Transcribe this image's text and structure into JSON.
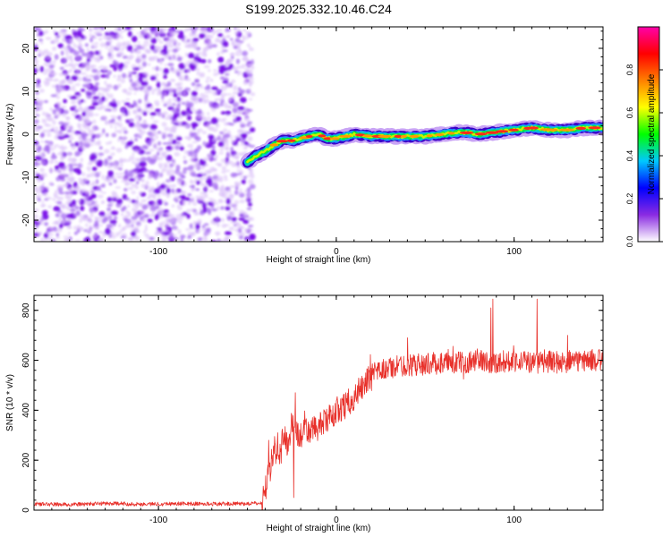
{
  "title": "S199.2025.332.10.46.C24",
  "chart_data": [
    {
      "type": "heatmap",
      "panel": "spectrogram",
      "xlabel": "Height of straight line (km)",
      "ylabel": "Frequency (Hz)",
      "xlim": [
        -170,
        150
      ],
      "ylim": [
        -25,
        25
      ],
      "xticks": [
        -100,
        0,
        100
      ],
      "yticks": [
        -20,
        -10,
        0,
        10,
        20
      ],
      "noise_region_x": [
        -170,
        -50
      ],
      "noise_color": "#9b3cf0",
      "signal_track": {
        "x": [
          -50,
          -45,
          -40,
          -35,
          -30,
          -25,
          -20,
          -15,
          -10,
          -5,
          0,
          10,
          20,
          30,
          40,
          50,
          60,
          70,
          80,
          90,
          100,
          110,
          120,
          130,
          140,
          150
        ],
        "freq_hz": [
          -6.5,
          -5.0,
          -4.0,
          -2.5,
          -1.5,
          -1.5,
          -1.0,
          -0.5,
          0.0,
          -1.0,
          -1.0,
          0.0,
          -0.5,
          -0.5,
          -0.5,
          -0.5,
          0.0,
          0.5,
          0.0,
          0.5,
          1.0,
          1.5,
          1.0,
          1.0,
          1.5,
          1.5
        ]
      },
      "colorbar": {
        "label": "Normalized spectral amplitude",
        "range": [
          0,
          1
        ],
        "ticks": [
          "0.0",
          "0.2",
          "0.4",
          "0.6",
          "0.8"
        ],
        "colors": [
          "#ffffff",
          "#8a2be2",
          "#0000ff",
          "#00c8ff",
          "#00ff00",
          "#ffff00",
          "#ff8000",
          "#ff0000",
          "#ff00aa"
        ]
      }
    },
    {
      "type": "line",
      "panel": "snr",
      "xlabel": "Height of straight line (km)",
      "ylabel": "SNR (10 * v/v)",
      "xlim": [
        -170,
        150
      ],
      "ylim": [
        0,
        860
      ],
      "xticks": [
        -100,
        0,
        100
      ],
      "yticks": [
        0,
        200,
        400,
        600,
        800
      ],
      "color": "#e8302a",
      "series": [
        {
          "name": "SNR",
          "x": [
            -170,
            -150,
            -130,
            -110,
            -90,
            -70,
            -50,
            -42,
            -40,
            -37,
            -35,
            -32,
            -30,
            -27,
            -25,
            -22,
            -20,
            -17,
            -15,
            -12,
            -10,
            -7,
            -5,
            -2,
            0,
            5,
            10,
            15,
            20,
            25,
            30,
            40,
            50,
            60,
            70,
            80,
            90,
            100,
            110,
            120,
            130,
            140,
            150
          ],
          "values": [
            25,
            22,
            27,
            24,
            26,
            25,
            26,
            28,
            80,
            170,
            250,
            200,
            300,
            260,
            350,
            300,
            300,
            320,
            310,
            330,
            330,
            350,
            360,
            380,
            400,
            420,
            450,
            500,
            540,
            560,
            570,
            580,
            585,
            590,
            590,
            600,
            590,
            600,
            590,
            595,
            590,
            600,
            600
          ]
        }
      ],
      "spikes": [
        {
          "x": -38,
          "y": 280
        },
        {
          "x": -33,
          "y": 310
        },
        {
          "x": -23,
          "y": 470
        },
        {
          "x": -24,
          "y": 50
        },
        {
          "x": 40,
          "y": 690
        },
        {
          "x": 87,
          "y": 810
        },
        {
          "x": 88,
          "y": 845
        },
        {
          "x": 113,
          "y": 845
        },
        {
          "x": 130,
          "y": 700
        }
      ]
    }
  ]
}
